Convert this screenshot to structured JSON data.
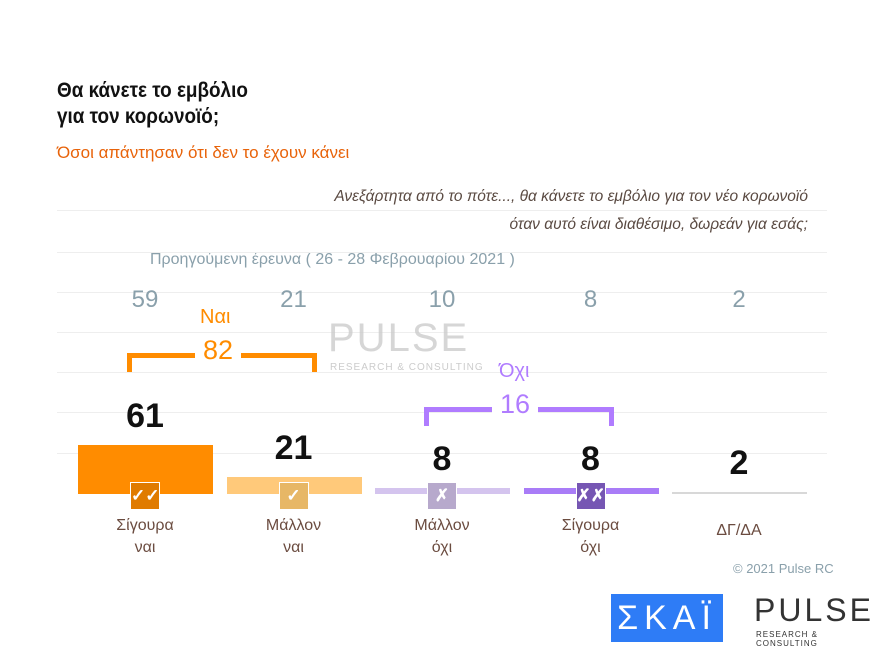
{
  "title_lines": [
    "Θα κάνετε το εμβόλιο",
    "για τον κορωνοϊό;"
  ],
  "subtitle": "Όσοι απάντησαν ότι δεν το έχουν κάνει",
  "question_lines": [
    "Ανεξάρτητα από το πότε..., θα κάνετε το εμβόλιο για τον νέο κορωνοϊό",
    "όταν αυτό είναι διαθέσιμο, δωρεάν για εσάς;"
  ],
  "previous_label": "Προηγούμενη έρευνα  ( 26 - 28  Φεβρουαρίου  2021 )",
  "groups": {
    "yes": {
      "label": "Ναι",
      "total": "82",
      "color": "#ff8c00"
    },
    "no": {
      "label": "Όχι",
      "total": "16",
      "color": "#b07cff"
    }
  },
  "copyright": "© 2021 Pulse RC",
  "logos": {
    "skai": "ΣΚΑΪ",
    "pulse": "PULSE",
    "pulse_sub": "RESEARCH & CONSULTING"
  },
  "chart_data": {
    "type": "bar",
    "categories": [
      "Σίγουρα ναι",
      "Μάλλον ναι",
      "Μάλλον όχι",
      "Σίγουρα όχι",
      "ΔΓ/ΔΑ"
    ],
    "category_lines": [
      [
        "Σίγουρα",
        "ναι"
      ],
      [
        "Μάλλον",
        "ναι"
      ],
      [
        "Μάλλον",
        "όχι"
      ],
      [
        "Σίγουρα",
        "όχι"
      ],
      [
        "ΔΓ/ΔΑ",
        ""
      ]
    ],
    "series": [
      {
        "values": [
          61,
          21,
          8,
          8,
          2
        ]
      },
      {
        "name": "Προηγούμενη έρευνα",
        "values": [
          59,
          21,
          10,
          8,
          2
        ]
      }
    ],
    "colors": [
      "#ff8c00",
      "#ffc97a",
      "#d4c4ee",
      "#a97cf7",
      "#d8d8d8"
    ],
    "icons": [
      "double-check-icon",
      "check-icon",
      "cross-icon",
      "double-cross-icon",
      ""
    ],
    "icon_colors": [
      "#e07b00",
      "#e7b766",
      "#b7a9cc",
      "#7656b3",
      ""
    ],
    "ylim": [
      0,
      100
    ]
  }
}
